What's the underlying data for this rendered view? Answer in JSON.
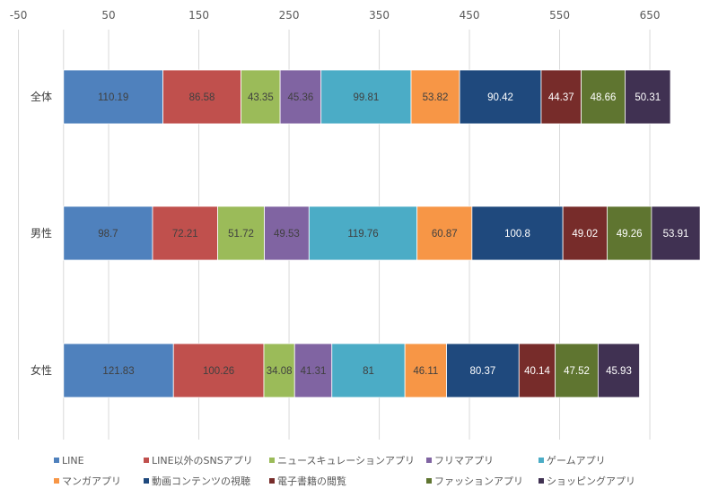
{
  "chart_data": {
    "type": "bar",
    "orientation": "horizontal",
    "stacked": true,
    "categories": [
      "全体",
      "男性",
      "女性"
    ],
    "xlim": [
      -50,
      700
    ],
    "xticks": [
      -50,
      50,
      150,
      250,
      350,
      450,
      550,
      650
    ],
    "grid": true,
    "legend_position": "bottom",
    "series": [
      {
        "name": "LINE",
        "color": "#4f81bd",
        "values": [
          110.19,
          98.7,
          121.83
        ],
        "label_color": "#404040"
      },
      {
        "name": "LINE以外のSNSアプリ",
        "color": "#c0504d",
        "values": [
          86.58,
          72.21,
          100.26
        ],
        "label_color": "#404040"
      },
      {
        "name": "ニュースキュレーションアプリ",
        "color": "#9bbb59",
        "values": [
          43.35,
          51.72,
          34.08
        ],
        "label_color": "#404040"
      },
      {
        "name": "フリマアプリ",
        "color": "#8064a2",
        "values": [
          45.36,
          49.53,
          41.31
        ],
        "label_color": "#404040"
      },
      {
        "name": "ゲームアプリ",
        "color": "#4bacc6",
        "values": [
          99.81,
          119.76,
          81
        ],
        "label_color": "#404040"
      },
      {
        "name": "マンガアプリ",
        "color": "#f79646",
        "values": [
          53.82,
          60.87,
          46.11
        ],
        "label_color": "#404040"
      },
      {
        "name": "動画コンテンツの視聴",
        "color": "#1f497d",
        "values": [
          90.42,
          100.8,
          80.37
        ],
        "label_color": "#ffffff"
      },
      {
        "name": "電子書籍の閲覧",
        "color": "#772c2a",
        "values": [
          44.37,
          49.02,
          40.14
        ],
        "label_color": "#ffffff"
      },
      {
        "name": "ファッションアプリ",
        "color": "#5f7530",
        "values": [
          48.66,
          49.26,
          47.52
        ],
        "label_color": "#ffffff"
      },
      {
        "name": "ショッピングアプリ",
        "color": "#403152",
        "values": [
          50.31,
          53.91,
          45.93
        ],
        "label_color": "#ffffff"
      }
    ]
  }
}
